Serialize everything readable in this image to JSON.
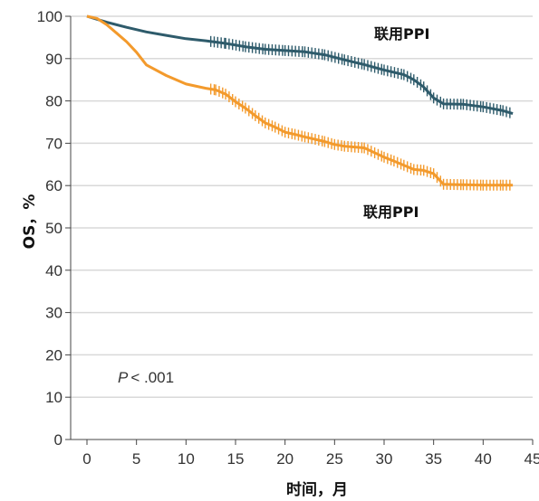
{
  "chart_data": {
    "type": "line",
    "title": "",
    "xlabel": "时间，月",
    "ylabel": "OS，%",
    "xlim": [
      0,
      45
    ],
    "ylim": [
      0,
      100
    ],
    "xticks": [
      "0",
      "5",
      "10",
      "15",
      "20",
      "25",
      "30",
      "35",
      "40",
      "45"
    ],
    "yticks": [
      "0",
      "10",
      "20",
      "30",
      "40",
      "50",
      "60",
      "70",
      "80",
      "90",
      "100"
    ],
    "grid": "horizontal",
    "annotation": {
      "p_label": "P",
      "p_value": "< .001"
    },
    "series": [
      {
        "name": "联用PPI",
        "color": "#2e5b6b",
        "x": [
          0,
          2,
          4,
          6,
          8,
          10,
          12,
          14,
          16,
          18,
          20,
          22,
          24,
          26,
          28,
          30,
          32,
          33,
          34,
          35,
          36,
          38,
          40,
          42,
          43
        ],
        "y": [
          100,
          98.6,
          97.4,
          96.3,
          95.5,
          94.7,
          94.2,
          93.6,
          92.8,
          92.2,
          91.9,
          91.6,
          90.9,
          89.7,
          88.6,
          87.3,
          86.2,
          85,
          83.3,
          80.7,
          79.3,
          79.2,
          78.6,
          77.7,
          77
        ]
      },
      {
        "name": "联用PPI",
        "color": "#f39a2c",
        "x": [
          0,
          1,
          2,
          3,
          4,
          5,
          6,
          8,
          10,
          12,
          13,
          14,
          15,
          16,
          17,
          18,
          19,
          20,
          21,
          22,
          24,
          25,
          26,
          28,
          30,
          31,
          32,
          33,
          34,
          35,
          36,
          38,
          40,
          42,
          43
        ],
        "y": [
          100,
          99.5,
          98,
          96,
          94,
          91.5,
          88.5,
          86,
          84,
          83,
          82.6,
          81.6,
          79.8,
          78.3,
          76.5,
          74.8,
          73.8,
          72.6,
          72.1,
          71.5,
          70.4,
          69.7,
          69.3,
          68.9,
          66.7,
          65.8,
          64.8,
          63.8,
          63.6,
          62.8,
          60.3,
          60.2,
          60.1,
          60.1,
          60.1
        ]
      }
    ]
  }
}
